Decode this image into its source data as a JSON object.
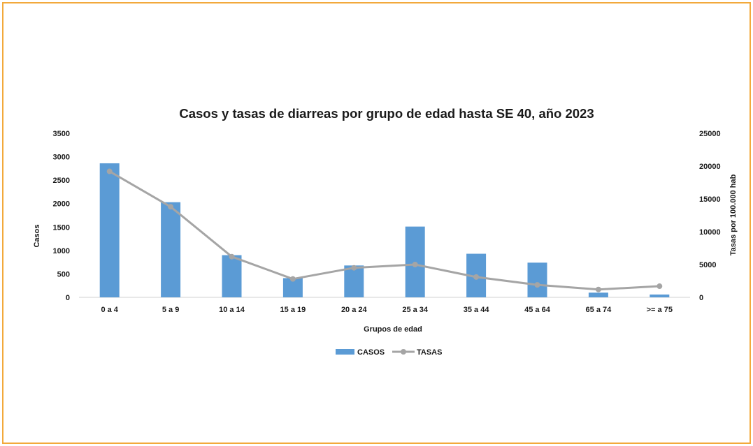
{
  "colors": {
    "border": "#f2a93b",
    "bars": "#5b9bd5",
    "line": "#a5a5a5",
    "axis": "#d0d0d0",
    "text": "#1a1a1a"
  },
  "chart_data": {
    "type": "bar",
    "title": "Casos y tasas de diarreas por grupo de edad hasta SE 40, año 2023",
    "xlabel": "Grupos de edad",
    "ylabel": "Casos",
    "y2label": "Tasas por 100.000 hab",
    "ylim": [
      0,
      3500
    ],
    "y2lim": [
      0,
      25000
    ],
    "yticks": [
      0,
      500,
      1000,
      1500,
      2000,
      2500,
      3000,
      3500
    ],
    "y2ticks": [
      0,
      5000,
      10000,
      15000,
      20000,
      25000
    ],
    "categories": [
      "0 a 4",
      "5 a 9",
      "10 a 14",
      "15 a 19",
      "20 a 24",
      "25 a 34",
      "35 a 44",
      "45 a 64",
      "65 a 74",
      ">= a 75"
    ],
    "series": [
      {
        "name": "CASOS",
        "type": "bar",
        "axis": "left",
        "values": [
          2860,
          2030,
          900,
          410,
          680,
          1510,
          930,
          740,
          100,
          60
        ]
      },
      {
        "name": "TASAS",
        "type": "line",
        "axis": "right",
        "values": [
          19200,
          13800,
          6200,
          2800,
          4500,
          5000,
          3100,
          1900,
          1200,
          1700
        ]
      }
    ],
    "grid": false,
    "legend": "bottom"
  }
}
